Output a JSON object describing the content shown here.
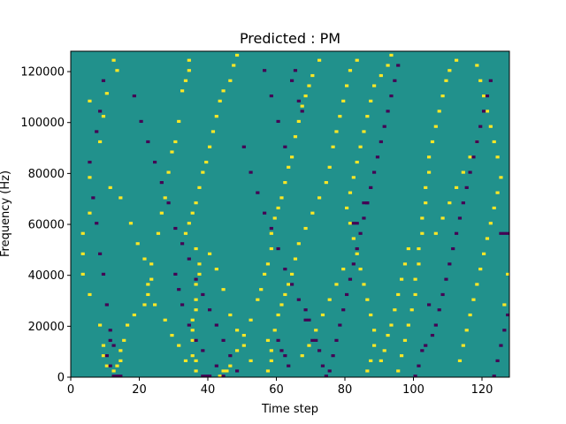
{
  "chart_data": {
    "type": "heatmap",
    "title": "Predicted : PM",
    "xlabel": "Time step",
    "ylabel": "Frequency (Hz)",
    "xlim": [
      0,
      128
    ],
    "ylim": [
      0,
      128000
    ],
    "x_ticks": [
      0,
      20,
      40,
      60,
      80,
      100,
      120
    ],
    "y_ticks": [
      0,
      20000,
      40000,
      60000,
      80000,
      100000,
      120000
    ],
    "grid": false,
    "colors": {
      "background": "#21918c",
      "high": "#fde725",
      "low": "#440154"
    },
    "high_cells": [
      [
        12,
        124
      ],
      [
        13,
        120
      ],
      [
        10,
        111
      ],
      [
        5,
        108
      ],
      [
        9,
        102
      ],
      [
        8,
        92
      ],
      [
        5,
        78
      ],
      [
        5,
        64
      ],
      [
        3,
        56
      ],
      [
        3,
        48
      ],
      [
        3,
        40
      ],
      [
        5,
        32
      ],
      [
        8,
        20
      ],
      [
        9,
        12
      ],
      [
        9,
        8
      ],
      [
        10,
        4
      ],
      [
        12,
        2
      ],
      [
        13,
        4
      ],
      [
        14,
        6
      ],
      [
        14,
        10
      ],
      [
        15,
        14
      ],
      [
        16,
        20
      ],
      [
        18,
        24
      ],
      [
        21,
        28
      ],
      [
        22,
        32
      ],
      [
        22,
        36
      ],
      [
        23,
        44
      ],
      [
        25,
        56
      ],
      [
        26,
        64
      ],
      [
        27,
        70
      ],
      [
        28,
        80
      ],
      [
        29,
        88
      ],
      [
        30,
        92
      ],
      [
        31,
        100
      ],
      [
        32,
        112
      ],
      [
        33,
        116
      ],
      [
        34,
        120
      ],
      [
        34,
        124
      ],
      [
        33,
        56
      ],
      [
        34,
        60
      ],
      [
        35,
        64
      ],
      [
        36,
        68
      ],
      [
        37,
        74
      ],
      [
        38,
        80
      ],
      [
        39,
        84
      ],
      [
        40,
        90
      ],
      [
        41,
        96
      ],
      [
        42,
        102
      ],
      [
        43,
        108
      ],
      [
        44,
        112
      ],
      [
        46,
        116
      ],
      [
        47,
        122
      ],
      [
        48,
        126
      ],
      [
        36,
        50
      ],
      [
        37,
        44
      ],
      [
        37,
        40
      ],
      [
        36,
        36
      ],
      [
        36,
        30
      ],
      [
        36,
        26
      ],
      [
        35,
        22
      ],
      [
        35,
        18
      ],
      [
        35,
        14
      ],
      [
        35,
        8
      ],
      [
        36,
        6
      ],
      [
        36,
        2
      ],
      [
        43,
        0
      ],
      [
        44,
        2
      ],
      [
        45,
        2
      ],
      [
        46,
        4
      ],
      [
        48,
        10
      ],
      [
        50,
        16
      ],
      [
        52,
        22
      ],
      [
        54,
        30
      ],
      [
        55,
        34
      ],
      [
        56,
        40
      ],
      [
        57,
        44
      ],
      [
        58,
        50
      ],
      [
        58,
        56
      ],
      [
        59,
        62
      ],
      [
        60,
        66
      ],
      [
        61,
        70
      ],
      [
        62,
        76
      ],
      [
        63,
        82
      ],
      [
        64,
        86
      ],
      [
        65,
        94
      ],
      [
        66,
        100
      ],
      [
        67,
        106
      ],
      [
        68,
        110
      ],
      [
        69,
        114
      ],
      [
        70,
        118
      ],
      [
        72,
        124
      ],
      [
        57,
        2
      ],
      [
        58,
        6
      ],
      [
        58,
        10
      ],
      [
        57,
        14
      ],
      [
        59,
        18
      ],
      [
        60,
        24
      ],
      [
        61,
        28
      ],
      [
        62,
        32
      ],
      [
        63,
        36
      ],
      [
        64,
        40
      ],
      [
        65,
        46
      ],
      [
        66,
        52
      ],
      [
        68,
        58
      ],
      [
        70,
        64
      ],
      [
        72,
        70
      ],
      [
        74,
        76
      ],
      [
        75,
        82
      ],
      [
        76,
        90
      ],
      [
        77,
        96
      ],
      [
        78,
        102
      ],
      [
        79,
        108
      ],
      [
        80,
        114
      ],
      [
        81,
        120
      ],
      [
        83,
        124
      ],
      [
        86,
        2
      ],
      [
        87,
        6
      ],
      [
        88,
        12
      ],
      [
        88,
        18
      ],
      [
        87,
        24
      ],
      [
        86,
        30
      ],
      [
        85,
        36
      ],
      [
        84,
        42
      ],
      [
        83,
        48
      ],
      [
        82,
        54
      ],
      [
        81,
        60
      ],
      [
        80,
        66
      ],
      [
        81,
        72
      ],
      [
        82,
        78
      ],
      [
        83,
        84
      ],
      [
        84,
        90
      ],
      [
        85,
        96
      ],
      [
        86,
        102
      ],
      [
        87,
        108
      ],
      [
        88,
        114
      ],
      [
        90,
        118
      ],
      [
        92,
        122
      ],
      [
        93,
        126
      ],
      [
        95,
        2
      ],
      [
        96,
        8
      ],
      [
        97,
        14
      ],
      [
        98,
        20
      ],
      [
        99,
        26
      ],
      [
        100,
        32
      ],
      [
        100,
        38
      ],
      [
        101,
        44
      ],
      [
        101,
        50
      ],
      [
        102,
        56
      ],
      [
        102,
        62
      ],
      [
        103,
        68
      ],
      [
        103,
        74
      ],
      [
        104,
        80
      ],
      [
        104,
        86
      ],
      [
        105,
        92
      ],
      [
        106,
        98
      ],
      [
        107,
        104
      ],
      [
        108,
        110
      ],
      [
        109,
        116
      ],
      [
        110,
        120
      ],
      [
        112,
        124
      ],
      [
        113,
        6
      ],
      [
        114,
        12
      ],
      [
        115,
        18
      ],
      [
        116,
        24
      ],
      [
        117,
        30
      ],
      [
        118,
        36
      ],
      [
        119,
        42
      ],
      [
        120,
        48
      ],
      [
        121,
        54
      ],
      [
        122,
        60
      ],
      [
        123,
        66
      ],
      [
        124,
        72
      ],
      [
        125,
        78
      ],
      [
        124,
        86
      ],
      [
        123,
        92
      ],
      [
        122,
        98
      ],
      [
        121,
        104
      ],
      [
        120,
        110
      ],
      [
        119,
        116
      ],
      [
        118,
        122
      ],
      [
        126,
        28
      ],
      [
        127,
        40
      ],
      [
        11,
        74
      ],
      [
        14,
        70
      ],
      [
        17,
        60
      ],
      [
        19,
        52
      ],
      [
        21,
        46
      ],
      [
        23,
        38
      ],
      [
        24,
        28
      ],
      [
        27,
        22
      ],
      [
        29,
        16
      ],
      [
        31,
        12
      ],
      [
        33,
        6
      ],
      [
        40,
        48
      ],
      [
        42,
        42
      ],
      [
        44,
        34
      ],
      [
        46,
        24
      ],
      [
        48,
        18
      ],
      [
        50,
        12
      ],
      [
        52,
        6
      ],
      [
        67,
        8
      ],
      [
        69,
        12
      ],
      [
        71,
        18
      ],
      [
        73,
        24
      ],
      [
        75,
        30
      ],
      [
        77,
        36
      ],
      [
        79,
        42
      ],
      [
        90,
        6
      ],
      [
        91,
        10
      ],
      [
        92,
        16
      ],
      [
        93,
        20
      ],
      [
        94,
        26
      ],
      [
        95,
        32
      ],
      [
        96,
        38
      ],
      [
        97,
        44
      ],
      [
        98,
        50
      ],
      [
        106,
        56
      ],
      [
        108,
        62
      ],
      [
        110,
        68
      ],
      [
        112,
        74
      ],
      [
        114,
        80
      ],
      [
        116,
        86
      ],
      [
        118,
        92
      ]
    ],
    "low_cells": [
      [
        9,
        116
      ],
      [
        8,
        104
      ],
      [
        7,
        96
      ],
      [
        5,
        84
      ],
      [
        6,
        70
      ],
      [
        7,
        60
      ],
      [
        8,
        48
      ],
      [
        9,
        40
      ],
      [
        10,
        28
      ],
      [
        11,
        18
      ],
      [
        11,
        14
      ],
      [
        12,
        12
      ],
      [
        10,
        8
      ],
      [
        11,
        4
      ],
      [
        12,
        0
      ],
      [
        13,
        0
      ],
      [
        14,
        0
      ],
      [
        18,
        110
      ],
      [
        20,
        100
      ],
      [
        22,
        92
      ],
      [
        24,
        84
      ],
      [
        26,
        76
      ],
      [
        28,
        68
      ],
      [
        30,
        58
      ],
      [
        32,
        52
      ],
      [
        34,
        46
      ],
      [
        36,
        38
      ],
      [
        38,
        32
      ],
      [
        40,
        26
      ],
      [
        42,
        20
      ],
      [
        44,
        14
      ],
      [
        46,
        8
      ],
      [
        48,
        2
      ],
      [
        39,
        0
      ],
      [
        40,
        0
      ],
      [
        38,
        0
      ],
      [
        50,
        90
      ],
      [
        52,
        80
      ],
      [
        54,
        72
      ],
      [
        56,
        64
      ],
      [
        58,
        58
      ],
      [
        60,
        50
      ],
      [
        62,
        42
      ],
      [
        64,
        36
      ],
      [
        66,
        30
      ],
      [
        68,
        26
      ],
      [
        68,
        22
      ],
      [
        69,
        22
      ],
      [
        70,
        14
      ],
      [
        71,
        14
      ],
      [
        72,
        10
      ],
      [
        73,
        4
      ],
      [
        74,
        0
      ],
      [
        75,
        2
      ],
      [
        76,
        8
      ],
      [
        77,
        14
      ],
      [
        78,
        20
      ],
      [
        79,
        26
      ],
      [
        80,
        32
      ],
      [
        81,
        38
      ],
      [
        82,
        44
      ],
      [
        83,
        50
      ],
      [
        84,
        56
      ],
      [
        85,
        62
      ],
      [
        86,
        68
      ],
      [
        87,
        74
      ],
      [
        88,
        80
      ],
      [
        89,
        86
      ],
      [
        90,
        92
      ],
      [
        91,
        98
      ],
      [
        92,
        104
      ],
      [
        93,
        110
      ],
      [
        94,
        116
      ],
      [
        95,
        122
      ],
      [
        64,
        116
      ],
      [
        65,
        120
      ],
      [
        66,
        108
      ],
      [
        67,
        104
      ],
      [
        82,
        60
      ],
      [
        83,
        60
      ],
      [
        85,
        68
      ],
      [
        86,
        68
      ],
      [
        105,
        16
      ],
      [
        106,
        20
      ],
      [
        107,
        26
      ],
      [
        108,
        32
      ],
      [
        109,
        38
      ],
      [
        110,
        44
      ],
      [
        111,
        50
      ],
      [
        112,
        56
      ],
      [
        113,
        62
      ],
      [
        114,
        68
      ],
      [
        115,
        74
      ],
      [
        116,
        80
      ],
      [
        117,
        86
      ],
      [
        118,
        92
      ],
      [
        119,
        98
      ],
      [
        120,
        104
      ],
      [
        121,
        110
      ],
      [
        122,
        116
      ],
      [
        125,
        56
      ],
      [
        126,
        56
      ],
      [
        127,
        56
      ],
      [
        123,
        0
      ],
      [
        124,
        6
      ],
      [
        125,
        12
      ],
      [
        126,
        18
      ],
      [
        127,
        24
      ],
      [
        30,
        40
      ],
      [
        31,
        34
      ],
      [
        32,
        28
      ],
      [
        34,
        20
      ],
      [
        36,
        14
      ],
      [
        38,
        10
      ],
      [
        42,
        4
      ],
      [
        44,
        0
      ],
      [
        56,
        120
      ],
      [
        58,
        110
      ],
      [
        60,
        100
      ],
      [
        62,
        90
      ],
      [
        100,
        0
      ],
      [
        101,
        4
      ],
      [
        102,
        10
      ],
      [
        103,
        12
      ],
      [
        104,
        28
      ],
      [
        60,
        14
      ],
      [
        61,
        10
      ],
      [
        62,
        8
      ],
      [
        63,
        4
      ]
    ]
  }
}
